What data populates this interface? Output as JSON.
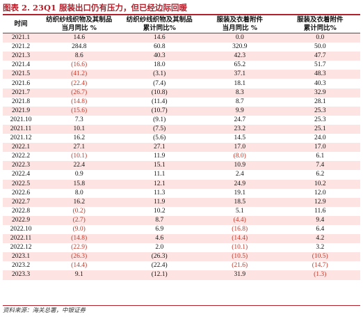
{
  "figure": {
    "title": "图表 2. 23Q1 服装出口仍有压力，但已经边际回暖"
  },
  "table": {
    "headers": [
      [
        "时间"
      ],
      [
        "纺织纱线织物及其制品",
        "当月同比 %"
      ],
      [
        "纺织纱线织物及其制品",
        "累计同比%"
      ],
      [
        "服装及衣着附件",
        "当月同比 %"
      ],
      [
        "服装及衣着附件",
        "累计同比%"
      ]
    ],
    "rows": [
      [
        "2021.1",
        "14.6",
        "14.6",
        "0.0",
        "0.0"
      ],
      [
        "2021.2",
        "284.8",
        "60.8",
        "320.9",
        "50.0"
      ],
      [
        "2021.3",
        "8.6",
        "40.3",
        "42.3",
        "47.7"
      ],
      [
        "2021.4",
        "(16.6)",
        "18.0",
        "65.2",
        "51.7"
      ],
      [
        "2021.5",
        "(41.2)",
        "(3.1)",
        "37.1",
        "48.3"
      ],
      [
        "2021.6",
        "(22.4)",
        "(7.4)",
        "18.1",
        "40.3"
      ],
      [
        "2021.7",
        "(26.7)",
        "(10.8)",
        "8.3",
        "32.9"
      ],
      [
        "2021.8",
        "(14.8)",
        "(11.4)",
        "8.7",
        "28.1"
      ],
      [
        "2021.9",
        "(15.6)",
        "(10.7)",
        "9.9",
        "25.3"
      ],
      [
        "2021.10",
        "7.3",
        "(9.1)",
        "24.7",
        "25.3"
      ],
      [
        "2021.11",
        "10.1",
        "(7.5)",
        "23.2",
        "25.1"
      ],
      [
        "2021.12",
        "16.2",
        "(5.6)",
        "14.5",
        "24.0"
      ],
      [
        "2022.1",
        "27.1",
        "27.1",
        "17.0",
        "17.0"
      ],
      [
        "2022.2",
        "(10.1)",
        "11.9",
        "(8.0)",
        "6.1"
      ],
      [
        "2022.3",
        "22.4",
        "15.1",
        "10.9",
        "7.4"
      ],
      [
        "2022.4",
        "0.9",
        "11.1",
        "2.4",
        "6.2"
      ],
      [
        "2022.5",
        "15.8",
        "12.1",
        "24.9",
        "10.2"
      ],
      [
        "2022.6",
        "8.0",
        "11.3",
        "19.1",
        "12.0"
      ],
      [
        "2022.7",
        "16.2",
        "11.9",
        "18.5",
        "12.9"
      ],
      [
        "2022.8",
        "(0.2)",
        "10.2",
        "5.1",
        "11.6"
      ],
      [
        "2022.9",
        "(2.7)",
        "8.7",
        "(4.4)",
        "9.4"
      ],
      [
        "2022.10",
        "(9.0)",
        "6.9",
        "(16.8)",
        "6.4"
      ],
      [
        "2022.11",
        "(14.8)",
        "4.6",
        "(14.4)",
        "4.2"
      ],
      [
        "2022.12",
        "(22.9)",
        "2.0",
        "(10.1)",
        "3.2"
      ],
      [
        "2023.1",
        "(26.3)",
        "(26.3)",
        "(10.5)",
        "(10.5)"
      ],
      [
        "2023.2",
        "(14.4)",
        "(22.4)",
        "(21.6)",
        "(14.7)"
      ],
      [
        "2023.3",
        "9.1",
        "(12.1)",
        "31.9",
        "(1.3)"
      ]
    ]
  },
  "source": "资料来源：海关总署，中银证券",
  "colors": {
    "accent": "#b2202b",
    "negative": "#c0392b",
    "stripe": "#fde4e2"
  }
}
